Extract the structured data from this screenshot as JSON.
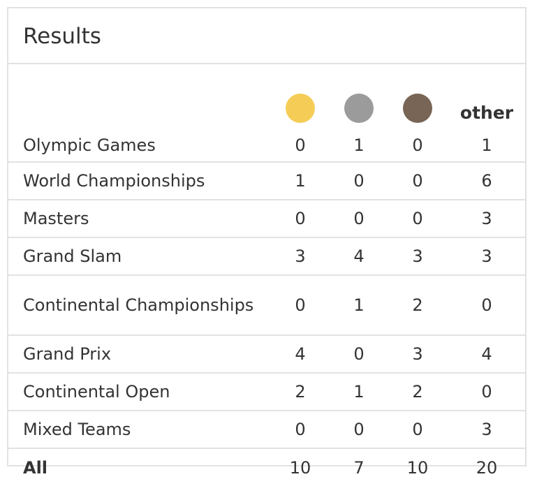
{
  "title": "Results",
  "columns": {
    "gold_color": "#f5cd56",
    "silver_color": "#9b9b9b",
    "bronze_color": "#786555",
    "other_label": "other"
  },
  "rows": [
    {
      "label": "Olympic Games",
      "gold": "0",
      "silver": "1",
      "bronze": "0",
      "other": "1"
    },
    {
      "label": "World Championships",
      "gold": "1",
      "silver": "0",
      "bronze": "0",
      "other": "6"
    },
    {
      "label": "Masters",
      "gold": "0",
      "silver": "0",
      "bronze": "0",
      "other": "3"
    },
    {
      "label": "Grand Slam",
      "gold": "3",
      "silver": "4",
      "bronze": "3",
      "other": "3"
    },
    {
      "label": "Continental Championships",
      "gold": "0",
      "silver": "1",
      "bronze": "2",
      "other": "0"
    },
    {
      "label": "Grand Prix",
      "gold": "4",
      "silver": "0",
      "bronze": "3",
      "other": "4"
    },
    {
      "label": "Continental Open",
      "gold": "2",
      "silver": "1",
      "bronze": "2",
      "other": "0"
    },
    {
      "label": "Mixed Teams",
      "gold": "0",
      "silver": "0",
      "bronze": "0",
      "other": "3"
    }
  ],
  "total": {
    "label": "All",
    "gold": "10",
    "silver": "7",
    "bronze": "10",
    "other": "20"
  }
}
